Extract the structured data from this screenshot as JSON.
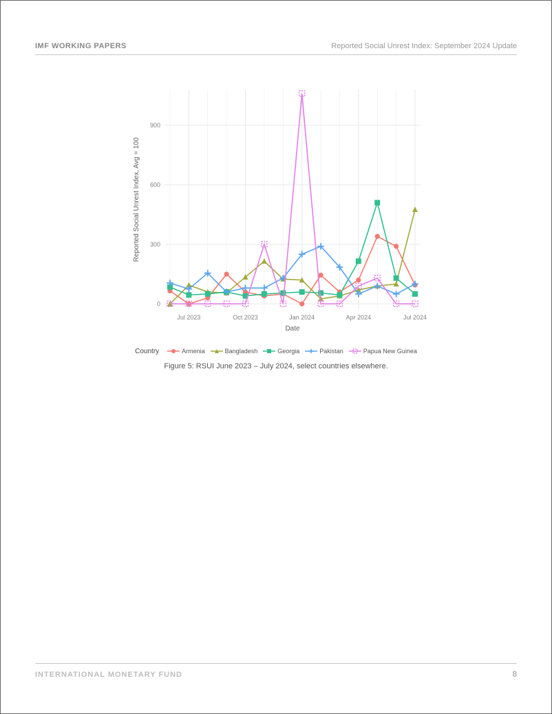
{
  "header": {
    "left": "IMF WORKING PAPERS",
    "right": "Reported Social Unrest Index: September 2024 Update"
  },
  "footer": {
    "left": "INTERNATIONAL MONETARY FUND",
    "page": "8"
  },
  "figure": {
    "caption": "Figure 5: RSUI June 2023 – July 2024, select countries elsewhere.",
    "type": "line",
    "ylabel": "Reported Social Unrest Index, Avg = 100",
    "xlabel": "Date",
    "legend_title": "Country",
    "label_fontsize": 10,
    "tick_fontsize": 9,
    "background_color": "#ffffff",
    "panel_bg": "#ffffff",
    "grid_color": "#e8e8e8",
    "axis_text_color": "#808080",
    "axis_label_color": "#606060",
    "ylim": [
      -30,
      1080
    ],
    "yticks": [
      0,
      300,
      600,
      900
    ],
    "x_categories": [
      "Jun 2023",
      "Jul 2023",
      "Aug 2023",
      "Sep 2023",
      "Oct 2023",
      "Nov 2023",
      "Dec 2023",
      "Jan 2024",
      "Feb 2024",
      "Mar 2024",
      "Apr 2024",
      "May 2024",
      "Jun 2024",
      "Jul 2024"
    ],
    "x_tick_labels": {
      "1": "Jul 2023",
      "4": "Oct 2023",
      "7": "Jan 2024",
      "10": "Apr 2024",
      "13": "Jul 2024"
    },
    "line_width": 1.6,
    "marker_size": 5,
    "series": [
      {
        "name": "Armenia",
        "color": "#f37a6f",
        "marker": "circle",
        "values": [
          65,
          0,
          30,
          150,
          60,
          40,
          50,
          0,
          145,
          60,
          120,
          340,
          290,
          95
        ]
      },
      {
        "name": "Bangladesh",
        "color": "#a2a93a",
        "marker": "triangle",
        "values": [
          0,
          95,
          60,
          55,
          135,
          215,
          125,
          120,
          25,
          40,
          70,
          90,
          100,
          475
        ]
      },
      {
        "name": "Georgia",
        "color": "#31bf8f",
        "marker": "square",
        "values": [
          85,
          45,
          50,
          60,
          40,
          50,
          55,
          60,
          55,
          45,
          215,
          510,
          130,
          50
        ]
      },
      {
        "name": "Pakistan",
        "color": "#56a3ef",
        "marker": "plus",
        "values": [
          105,
          75,
          155,
          60,
          80,
          80,
          130,
          250,
          290,
          185,
          50,
          90,
          50,
          100
        ]
      },
      {
        "name": "Papua New Guinea",
        "color": "#e27ee8",
        "marker": "square-open",
        "values": [
          0,
          0,
          0,
          0,
          0,
          300,
          0,
          1060,
          0,
          0,
          90,
          130,
          0,
          0
        ]
      }
    ]
  }
}
